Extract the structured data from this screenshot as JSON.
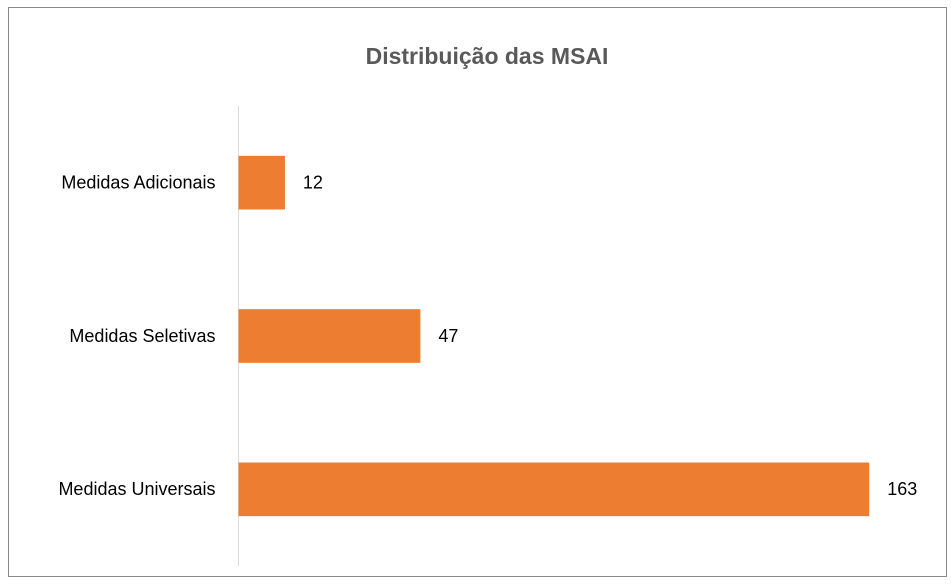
{
  "chart_data": {
    "type": "bar",
    "orientation": "horizontal",
    "title": "Distribuição das MSAI",
    "categories": [
      "Medidas Adicionais",
      "Medidas Seletivas",
      "Medidas Universais"
    ],
    "values": [
      12,
      47,
      163
    ],
    "color": "#ed7d31",
    "xlim": [
      0,
      180
    ]
  }
}
